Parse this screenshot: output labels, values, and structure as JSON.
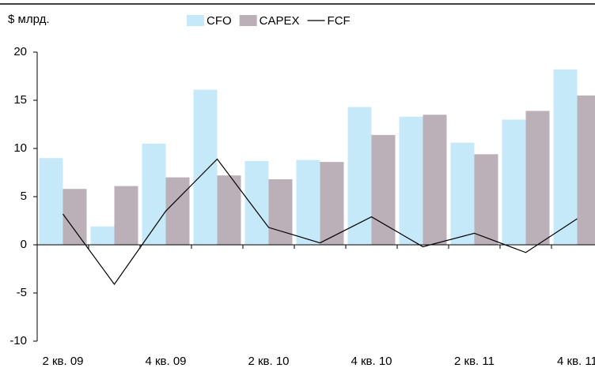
{
  "chart_data": {
    "type": "bar",
    "ylabel": "$ млрд.",
    "categories": [
      "2 кв. 09",
      null,
      "4 кв. 09",
      null,
      "2 кв. 10",
      null,
      "4 кв. 10",
      null,
      "2 кв. 11",
      null,
      "4 кв. 11"
    ],
    "series": [
      {
        "name": "CFO",
        "type": "bar",
        "color": "#c6e9fa",
        "values": [
          9.0,
          1.9,
          10.5,
          16.1,
          8.7,
          8.8,
          14.3,
          13.3,
          10.6,
          13.0,
          18.2
        ]
      },
      {
        "name": "CAPEX",
        "type": "bar",
        "color": "#bbb0b8",
        "values": [
          5.8,
          6.1,
          7.0,
          7.2,
          6.8,
          8.6,
          11.4,
          13.5,
          9.4,
          13.9,
          15.5
        ]
      },
      {
        "name": "FCF",
        "type": "line",
        "color": "#000000",
        "values": [
          3.2,
          -4.1,
          3.5,
          8.9,
          1.8,
          0.2,
          2.9,
          -0.2,
          1.2,
          -0.8,
          2.7
        ]
      }
    ],
    "ylim": [
      -10,
      20
    ],
    "yticks": [
      -10,
      -5,
      0,
      5,
      10,
      15,
      20
    ]
  }
}
